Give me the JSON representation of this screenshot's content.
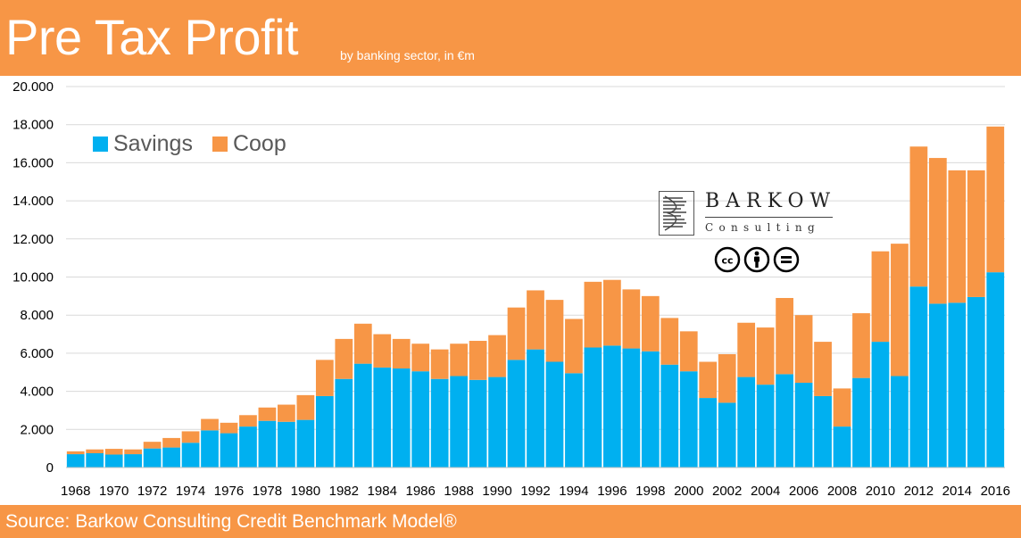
{
  "header": {
    "title": "Pre Tax Profit",
    "subtitle": "by banking sector, in €m"
  },
  "footer": {
    "source": "Source: Barkow Consulting Credit Benchmark Model®"
  },
  "logo": {
    "name": "BARKOW",
    "sub": "Consulting",
    "badges": [
      "cc-icon",
      "attribution-icon",
      "no-derivatives-icon"
    ]
  },
  "colors": {
    "header_bg": "#F79646",
    "savings": "#00B0F0",
    "coop": "#F79646",
    "axis_text": "#595959",
    "grid": "#D9D9D9"
  },
  "chart_data": {
    "type": "bar",
    "stacked": true,
    "x": [
      1968,
      1969,
      1970,
      1971,
      1972,
      1973,
      1974,
      1975,
      1976,
      1977,
      1978,
      1979,
      1980,
      1981,
      1982,
      1983,
      1984,
      1985,
      1986,
      1987,
      1988,
      1989,
      1990,
      1991,
      1992,
      1993,
      1994,
      1995,
      1996,
      1997,
      1998,
      1999,
      2000,
      2001,
      2002,
      2003,
      2004,
      2005,
      2006,
      2007,
      2008,
      2009,
      2010,
      2011,
      2012,
      2013,
      2014,
      2015,
      2016
    ],
    "series": [
      {
        "name": "Savings",
        "values": [
          700,
          750,
          680,
          700,
          1000,
          1050,
          1300,
          1950,
          1800,
          2150,
          2450,
          2400,
          2500,
          3750,
          4650,
          5450,
          5250,
          5200,
          5050,
          4650,
          4800,
          4600,
          4750,
          5650,
          6200,
          5550,
          4950,
          6300,
          6400,
          6250,
          6100,
          5400,
          5050,
          3650,
          3400,
          4750,
          4350,
          4900,
          4450,
          3750,
          2150,
          4700,
          6600,
          4800,
          9500,
          8600,
          8650,
          8950,
          10250
        ]
      },
      {
        "name": "Coop",
        "values": [
          150,
          200,
          300,
          250,
          350,
          500,
          600,
          600,
          550,
          600,
          700,
          900,
          1300,
          1900,
          2100,
          2100,
          1750,
          1550,
          1450,
          1550,
          1700,
          2050,
          2200,
          2750,
          3100,
          3250,
          2850,
          3450,
          3450,
          3100,
          2900,
          2450,
          2100,
          1900,
          2550,
          2850,
          3000,
          4000,
          3550,
          2850,
          2000,
          3400,
          4750,
          6950,
          7350,
          7650,
          6950,
          6650,
          7650
        ]
      }
    ],
    "ylim": [
      0,
      20000
    ],
    "yticks": [
      0,
      2000,
      4000,
      6000,
      8000,
      10000,
      12000,
      14000,
      16000,
      18000,
      20000
    ],
    "ytick_labels": [
      "0",
      "2.000",
      "4.000",
      "6.000",
      "8.000",
      "10.000",
      "12.000",
      "14.000",
      "16.000",
      "18.000",
      "20.000"
    ],
    "xtick_labels": [
      "1968",
      "1970",
      "1972",
      "1974",
      "1976",
      "1978",
      "1980",
      "1982",
      "1984",
      "1986",
      "1988",
      "1990",
      "1992",
      "1994",
      "1996",
      "1998",
      "2000",
      "2002",
      "2004",
      "2006",
      "2008",
      "2010",
      "2012",
      "2014",
      "2016"
    ],
    "grid": true,
    "legend": "top-left"
  }
}
